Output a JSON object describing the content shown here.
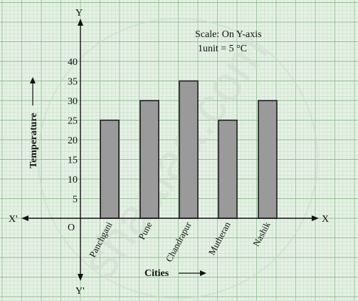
{
  "chart_data": {
    "type": "bar",
    "categories": [
      "Panchgani",
      "Pune",
      "Chandrapur",
      "Mutheran",
      "Nashik"
    ],
    "values": [
      25,
      30,
      35,
      25,
      30
    ],
    "xlabel": "Cities",
    "ylabel": "Temperature",
    "ylim": [
      0,
      40
    ],
    "yticks": [
      "5",
      "10",
      "15",
      "20",
      "25",
      "30",
      "35",
      "40"
    ],
    "grid": true,
    "axes": {
      "origin": "O",
      "x_pos": "X",
      "x_neg": "X'",
      "y_pos": "Y",
      "y_neg": "Y'"
    },
    "scale_note": {
      "line1": "Scale: On Y-axis",
      "line2": "1unit = 5 °C"
    },
    "watermark": "shaalaa.com",
    "colors": {
      "background": "#e6f1e6",
      "grid_minor": "#c2dcc2",
      "grid_major": "#93bd93",
      "bar_fill": "#9a9a9a",
      "bar_stroke": "#111111"
    }
  }
}
